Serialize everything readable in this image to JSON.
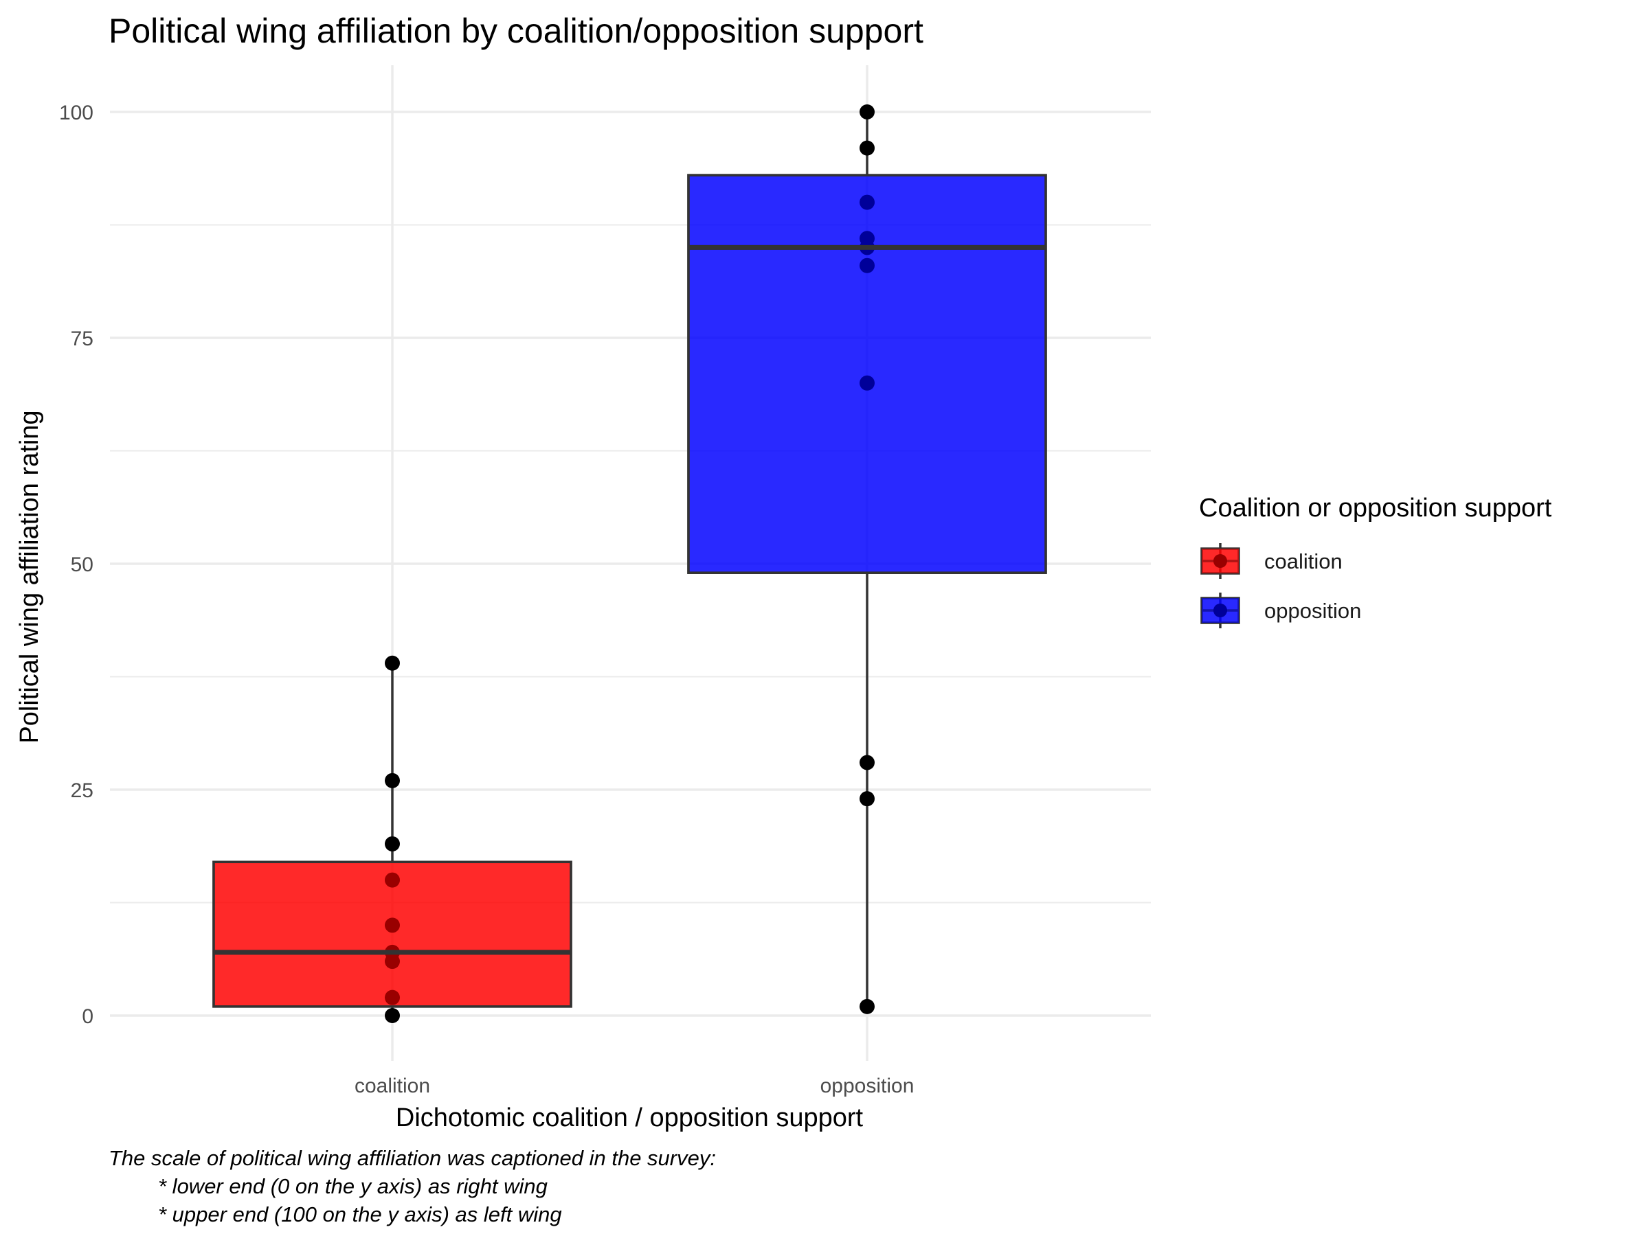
{
  "chart_data": {
    "type": "box",
    "title": "Political wing affiliation by coalition/opposition support",
    "xlabel": "Dichotomic coalition / opposition support",
    "ylabel": "Political wing affiliation rating",
    "categories": [
      "coalition",
      "opposition"
    ],
    "ylim": [
      -5,
      105
    ],
    "yticks": [
      0,
      25,
      50,
      75,
      100
    ],
    "grid": true,
    "legend": {
      "title": "Coalition or opposition support",
      "position": "right",
      "items": [
        {
          "label": "coalition",
          "color": "#ff0000"
        },
        {
          "label": "opposition",
          "color": "#0000ff"
        }
      ]
    },
    "series": [
      {
        "category": "coalition",
        "color": "#ff0000",
        "whisker_low": 0,
        "q1": 1,
        "median": 7,
        "q3": 17,
        "whisker_high": 39,
        "points": [
          0,
          2,
          6,
          7,
          10,
          15,
          19,
          26,
          39
        ]
      },
      {
        "category": "opposition",
        "color": "#0000ff",
        "whisker_low": 1,
        "q1": 49,
        "median": 85,
        "q3": 93,
        "whisker_high": 100,
        "points": [
          1,
          24,
          28,
          70,
          83,
          85,
          86,
          90,
          96,
          100
        ]
      }
    ],
    "caption": [
      "The scale of political wing affiliation was captioned in the survey:",
      "* lower end (0 on the y axis) as right wing",
      "* upper end (100 on the y axis) as left wing"
    ]
  }
}
